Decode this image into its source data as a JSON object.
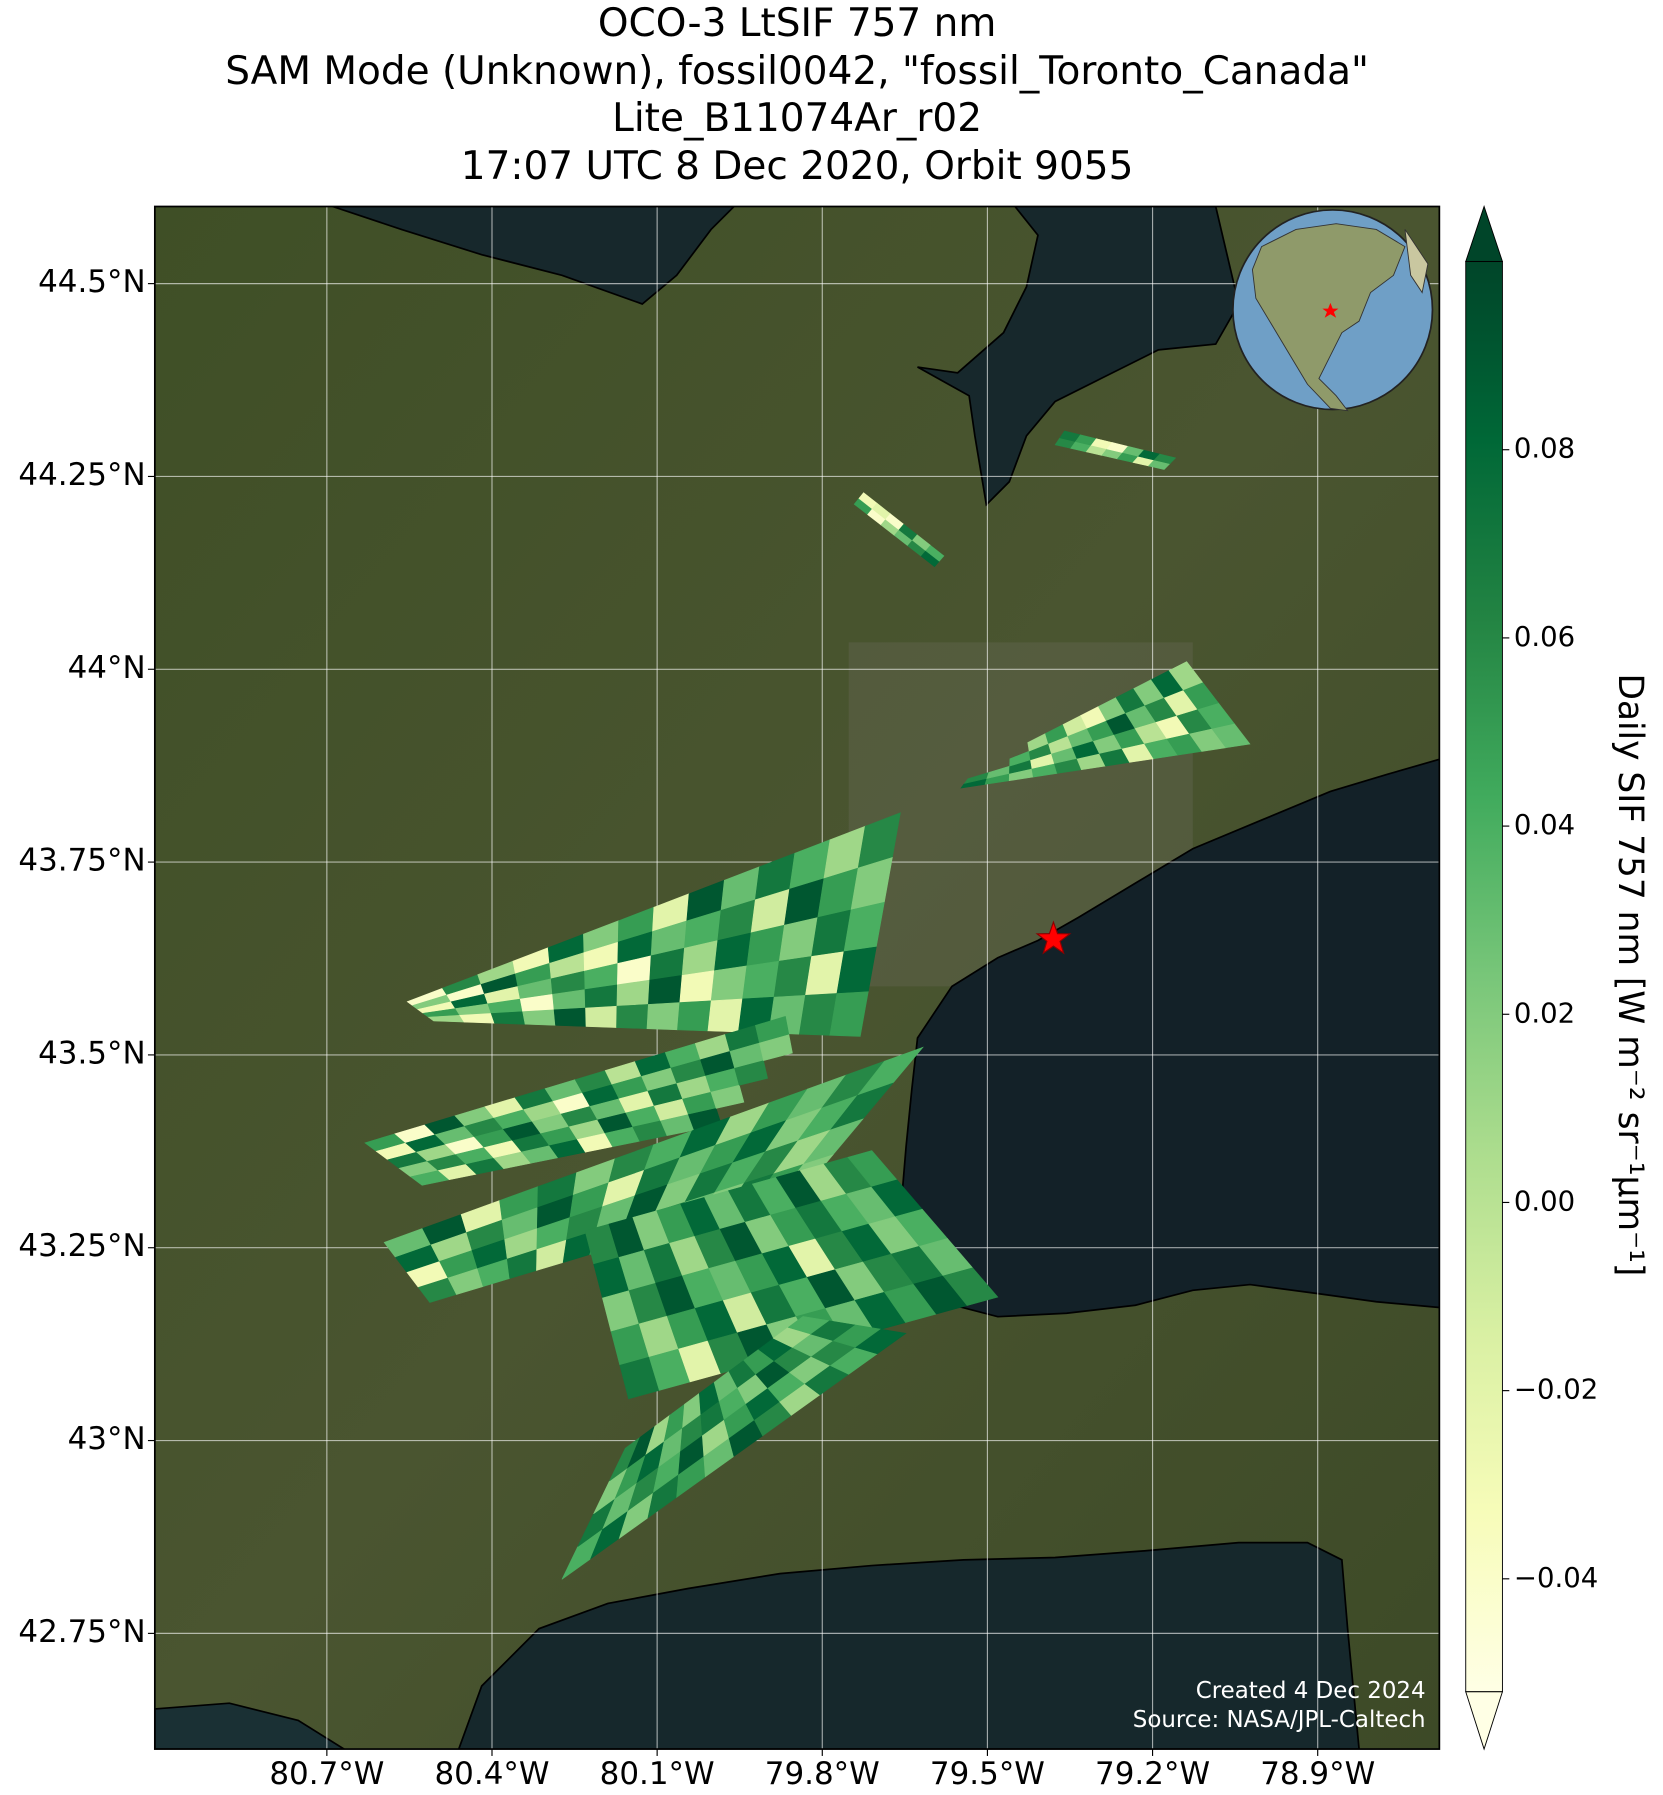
{
  "chart_data": {
    "type": "map",
    "title": [
      "OCO-3 LtSIF 757 nm",
      "SAM Mode (Unknown), fossil0042, \"fossil_Toronto_Canada\"",
      "Lite_B11074Ar_r02",
      "17:07 UTC 8 Dec 2020, Orbit 9055"
    ],
    "xlim": [
      -81.0125,
      -78.679
    ],
    "ylim": [
      42.6,
      44.6
    ],
    "xticks": [
      {
        "value": -80.7,
        "label": "80.7°W"
      },
      {
        "value": -80.4,
        "label": "80.4°W"
      },
      {
        "value": -80.1,
        "label": "80.1°W"
      },
      {
        "value": -79.8,
        "label": "79.8°W"
      },
      {
        "value": -79.5,
        "label": "79.5°W"
      },
      {
        "value": -79.2,
        "label": "79.2°W"
      },
      {
        "value": -78.9,
        "label": "78.9°W"
      }
    ],
    "yticks": [
      {
        "value": 44.5,
        "label": "44.5°N"
      },
      {
        "value": 44.25,
        "label": "44.25°N"
      },
      {
        "value": 44,
        "label": "44°N"
      },
      {
        "value": 43.75,
        "label": "43.75°N"
      },
      {
        "value": 43.5,
        "label": "43.5°N"
      },
      {
        "value": 43.25,
        "label": "43.25°N"
      },
      {
        "value": 43,
        "label": "43°N"
      },
      {
        "value": 42.75,
        "label": "42.75°N"
      }
    ],
    "grid": true,
    "colorbar": {
      "label": "Daily SIF 757 nm [W m⁻² sr⁻¹μm⁻¹]",
      "lim": [
        -0.052,
        0.1
      ],
      "ticks": [
        {
          "value": -0.04,
          "label": "−0.04"
        },
        {
          "value": -0.02,
          "label": "−0.02"
        },
        {
          "value": 0,
          "label": "0.00"
        },
        0.02,
        0.04,
        0.06,
        0.08
      ],
      "colors": [
        "#ffffe5",
        "#f7fcb9",
        "#d9f0a3",
        "#addd8e",
        "#78c679",
        "#41ab5d",
        "#238443",
        "#006837",
        "#004529"
      ]
    },
    "target": {
      "lon": -79.38,
      "lat": 43.65,
      "color": "#ff0000"
    },
    "annotations": [
      "Created 4 Dec 2024",
      "Source: NASA/JPL-Caltech"
    ],
    "swaths": [
      {
        "corners": [
          [
            -79.742,
            44.214
          ],
          [
            -79.596,
            44.133
          ],
          [
            -79.579,
            44.147
          ],
          [
            -79.725,
            44.229
          ]
        ],
        "values": [
          [
            0.05,
            -0.03
          ],
          [
            -0.04,
            -0.02
          ],
          [
            0.01,
            -0.04
          ],
          [
            0.03,
            0.07
          ],
          [
            0.06,
            0.02
          ],
          [
            0.08,
            0.04
          ]
        ]
      },
      {
        "corners": [
          [
            -79.377,
            44.291
          ],
          [
            -79.179,
            44.259
          ],
          [
            -79.158,
            44.274
          ],
          [
            -79.36,
            44.309
          ]
        ],
        "values": [
          [
            0.06,
            0.07
          ],
          [
            0.04,
            0.05
          ],
          [
            0.0,
            -0.03
          ],
          [
            0.02,
            -0.04
          ],
          [
            0.05,
            0.03
          ],
          [
            -0.02,
            0.08
          ],
          [
            0.03,
            0.06
          ]
        ]
      },
      {
        "corners": [
          [
            -79.548,
            43.846
          ],
          [
            -79.023,
            43.903
          ],
          [
            -79.138,
            44.01
          ],
          [
            -79.523,
            43.87
          ]
        ],
        "values": [
          [
            0.08,
            0.06,
            null,
            null
          ],
          [
            0.05,
            0.03,
            null,
            null
          ],
          [
            0.02,
            0.07,
            0.04,
            null
          ],
          [
            0.04,
            -0.02,
            0.06,
            0.01
          ],
          [
            0.06,
            0.03,
            0.0,
            0.05
          ],
          [
            0.01,
            0.08,
            0.03,
            -0.01
          ],
          [
            0.07,
            0.02,
            0.05,
            -0.03
          ],
          [
            -0.02,
            0.05,
            0.09,
            0.02
          ],
          [
            0.04,
            0.0,
            0.03,
            0.07
          ],
          [
            0.05,
            -0.03,
            0.06,
            0.02
          ],
          [
            0.02,
            0.06,
            -0.02,
            0.08
          ],
          [
            0.03,
            0.04,
            0.05,
            0.01
          ]
        ]
      },
      {
        "corners": [
          [
            -80.554,
            43.569
          ],
          [
            -79.658,
            43.814
          ],
          [
            -79.731,
            43.524
          ],
          [
            -80.506,
            43.544
          ]
        ],
        "values": [
          [
            -0.04,
            0.02,
            -0.03,
            0.05,
            0.01
          ],
          [
            0.06,
            -0.04,
            0.08,
            0.02,
            -0.03
          ],
          [
            0.01,
            0.09,
            -0.02,
            0.04,
            0.07
          ],
          [
            -0.03,
            0.05,
            0.03,
            -0.04,
            0.02
          ],
          [
            0.08,
            0.0,
            0.06,
            0.03,
            0.09
          ],
          [
            0.02,
            -0.03,
            0.04,
            0.07,
            -0.01
          ],
          [
            0.05,
            0.08,
            -0.04,
            0.01,
            0.06
          ],
          [
            -0.02,
            0.03,
            0.07,
            0.09,
            0.02
          ],
          [
            0.09,
            0.04,
            0.01,
            -0.03,
            0.05
          ],
          [
            0.03,
            0.06,
            0.08,
            0.02,
            -0.02
          ],
          [
            0.07,
            -0.01,
            0.05,
            0.04,
            0.08
          ],
          [
            0.04,
            0.09,
            0.02,
            0.06,
            0.03
          ],
          [
            0.01,
            0.05,
            0.07,
            -0.02,
            0.06
          ],
          [
            0.06,
            0.02,
            0.04,
            0.08,
            0.05
          ]
        ]
      },
      {
        "corners": [
          [
            -80.631,
            43.386
          ],
          [
            -79.867,
            43.55
          ],
          [
            -79.835,
            43.431
          ],
          [
            -80.527,
            43.331
          ]
        ],
        "values": [
          [
            0.05,
            -0.03,
            0.07,
            0.02,
            0.04
          ],
          [
            -0.04,
            0.08,
            0.01,
            0.06,
            -0.02
          ],
          [
            0.09,
            0.03,
            -0.04,
            0.04,
            0.07
          ],
          [
            0.02,
            0.06,
            0.05,
            -0.03,
            0.01
          ],
          [
            -0.02,
            0.04,
            0.09,
            0.07,
            0.03
          ],
          [
            0.07,
            0.01,
            0.02,
            0.05,
            0.08
          ],
          [
            0.03,
            -0.04,
            0.06,
            0.01,
            -0.03
          ],
          [
            0.06,
            0.08,
            0.03,
            0.09,
            0.04
          ],
          [
            0.0,
            0.05,
            -0.02,
            0.04,
            0.06
          ],
          [
            0.08,
            0.02,
            0.07,
            -0.01,
            0.03
          ],
          [
            0.04,
            0.06,
            0.01,
            0.05,
            0.09
          ],
          [
            0.01,
            0.09,
            0.04,
            0.02,
            null
          ],
          [
            0.07,
            0.03,
            0.06,
            null,
            null
          ],
          [
            0.05,
            0.02,
            null,
            null,
            null
          ]
        ]
      },
      {
        "corners": [
          [
            -80.596,
            43.257
          ],
          [
            -79.617,
            43.51
          ],
          [
            -79.835,
            43.324
          ],
          [
            -80.513,
            43.179
          ]
        ],
        "values": [
          [
            0.03,
            0.08,
            -0.03,
            0.06
          ],
          [
            0.09,
            0.01,
            0.05,
            0.02
          ],
          [
            -0.02,
            0.06,
            0.08,
            0.04
          ],
          [
            0.05,
            0.03,
            0.01,
            0.07
          ],
          [
            0.07,
            0.09,
            0.04,
            -0.01
          ],
          [
            0.02,
            0.05,
            0.06,
            0.08
          ],
          [
            0.06,
            -0.02,
            0.03,
            0.05
          ],
          [
            0.04,
            0.07,
            0.09,
            0.01
          ],
          [
            0.08,
            0.03,
            0.02,
            0.06
          ],
          [
            0.01,
            0.05,
            0.07,
            0.03
          ],
          [
            0.05,
            0.08,
            0.04,
            0.02
          ],
          [
            0.03,
            0.02,
            0.06,
            0.07
          ],
          [
            0.06,
            0.04,
            0.01,
            0.05
          ],
          [
            0.04,
            0.07,
            0.03,
            0.02
          ]
        ]
      },
      {
        "corners": [
          [
            -80.231,
            43.272
          ],
          [
            -79.71,
            43.376
          ],
          [
            -79.481,
            43.186
          ],
          [
            -80.152,
            43.054
          ]
        ],
        "values": [
          [
            0.06,
            0.08,
            0.02,
            0.05,
            0.07
          ],
          [
            0.09,
            0.03,
            0.06,
            0.01,
            0.04
          ],
          [
            0.02,
            0.07,
            0.09,
            0.05,
            -0.02
          ],
          [
            0.05,
            0.01,
            0.04,
            0.08,
            0.06
          ],
          [
            0.08,
            0.06,
            0.03,
            -0.01,
            0.09
          ],
          [
            0.03,
            0.09,
            0.05,
            0.07,
            0.02
          ],
          [
            0.07,
            0.02,
            0.08,
            0.04,
            0.05
          ],
          [
            0.04,
            0.05,
            -0.02,
            0.09,
            0.03
          ],
          [
            0.09,
            0.07,
            0.06,
            0.02,
            0.08
          ],
          [
            0.01,
            0.04,
            0.08,
            0.06,
            0.05
          ],
          [
            0.06,
            0.03,
            0.02,
            0.07,
            0.09
          ],
          [
            0.05,
            0.08,
            0.04,
            0.03,
            0.06
          ]
        ]
      },
      {
        "corners": [
          [
            -80.273,
            42.82
          ],
          [
            -79.648,
            43.139
          ],
          [
            -79.835,
            43.161
          ],
          [
            -80.158,
            42.99
          ]
        ],
        "values": [
          [
            0.04,
            0.07,
            0.02,
            0.06
          ],
          [
            0.08,
            0.03,
            0.05,
            0.09
          ],
          [
            0.02,
            0.06,
            0.08,
            0.01
          ],
          [
            0.07,
            0.04,
            0.03,
            0.05
          ],
          [
            0.05,
            0.09,
            0.06,
            0.02
          ],
          [
            0.03,
            0.01,
            0.07,
            0.08
          ],
          [
            0.09,
            0.05,
            0.04,
            0.03
          ],
          [
            0.06,
            0.08,
            0.02,
            0.07
          ],
          [
            0.01,
            0.04,
            0.09,
            0.05
          ],
          [
            0.07,
            0.02,
            0.06,
            0.08
          ],
          [
            0.04,
            0.06,
            0.03,
            0.01
          ],
          [
            0.08,
            0.05,
            0.07,
            0.04
          ]
        ]
      }
    ]
  }
}
